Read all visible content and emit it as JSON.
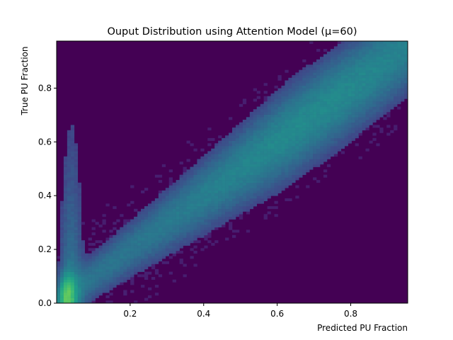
{
  "chart_data": {
    "type": "heatmap",
    "title": "Ouput Distribution using Attention Model (μ=60)",
    "xlabel": "Predicted PU Fraction",
    "ylabel": "True PU Fraction",
    "xlim": [
      0.0,
      0.955
    ],
    "ylim": [
      0.0,
      0.975
    ],
    "xticks": [
      0.2,
      0.4,
      0.6,
      0.8
    ],
    "xtick_labels": [
      "0.2",
      "0.4",
      "0.6",
      "0.8"
    ],
    "yticks": [
      0.0,
      0.2,
      0.4,
      0.6,
      0.8
    ],
    "ytick_labels": [
      "0.0",
      "0.2",
      "0.4",
      "0.6",
      "0.8"
    ],
    "colormap": "viridis",
    "background_color": "#440154",
    "bins": [
      100,
      100
    ],
    "grid": false,
    "legend": "none",
    "distribution": {
      "description_ridge": "density concentrated along the diagonal y = x",
      "peak": [
        0.03,
        0.01
      ],
      "ridge_points": [
        [
          0.05,
          0.05
        ],
        [
          0.2,
          0.2
        ],
        [
          0.4,
          0.4
        ],
        [
          0.6,
          0.6
        ],
        [
          0.8,
          0.8
        ],
        [
          0.95,
          0.97
        ]
      ]
    }
  }
}
